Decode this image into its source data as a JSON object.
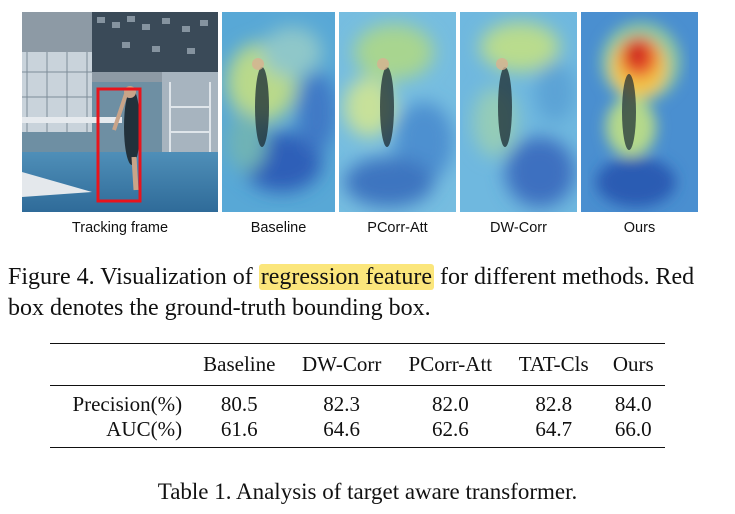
{
  "panels": [
    {
      "label": "Tracking frame"
    },
    {
      "label": "Baseline"
    },
    {
      "label": "PCorr-Att"
    },
    {
      "label": "DW-Corr"
    },
    {
      "label": "Ours"
    }
  ],
  "figure_caption": {
    "before": "Figure 4. Visualization of ",
    "highlight": "regression feature",
    "after": " for different methods. Red box denotes the ground-truth bounding box."
  },
  "table": {
    "headers": [
      "",
      "Baseline",
      "DW-Corr",
      "PCorr-Att",
      "TAT-Cls",
      "Ours"
    ],
    "rows": [
      {
        "name": "Precision(%)",
        "values": [
          "80.5",
          "82.3",
          "82.0",
          "82.8",
          "84.0"
        ]
      },
      {
        "name": "AUC(%)",
        "values": [
          "61.6",
          "64.6",
          "62.6",
          "64.7",
          "66.0"
        ]
      }
    ],
    "caption": "Table 1. Analysis of target aware transformer."
  },
  "colors": {
    "highlight": "#fbe67c",
    "gt_box": "#e8141c"
  }
}
